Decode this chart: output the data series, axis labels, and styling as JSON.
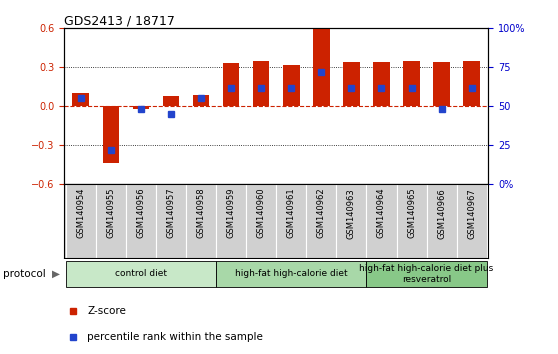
{
  "title": "GDS2413 / 18717",
  "samples": [
    "GSM140954",
    "GSM140955",
    "GSM140956",
    "GSM140957",
    "GSM140958",
    "GSM140959",
    "GSM140960",
    "GSM140961",
    "GSM140962",
    "GSM140963",
    "GSM140964",
    "GSM140965",
    "GSM140966",
    "GSM140967"
  ],
  "zscore": [
    0.1,
    -0.44,
    -0.02,
    0.08,
    0.09,
    0.33,
    0.35,
    0.32,
    0.6,
    0.34,
    0.34,
    0.35,
    0.34,
    0.35
  ],
  "percentile": [
    55,
    22,
    48,
    45,
    55,
    62,
    62,
    62,
    72,
    62,
    62,
    62,
    48,
    62
  ],
  "zscore_color": "#cc2200",
  "percentile_color": "#2244cc",
  "ylim_left": [
    -0.6,
    0.6
  ],
  "ylim_right": [
    0,
    100
  ],
  "yticks_left": [
    -0.6,
    -0.3,
    0.0,
    0.3,
    0.6
  ],
  "yticks_right": [
    0,
    25,
    50,
    75,
    100
  ],
  "groups": [
    {
      "label": "control diet",
      "start": 0,
      "end": 4,
      "color": "#c8e8c8"
    },
    {
      "label": "high-fat high-calorie diet",
      "start": 5,
      "end": 9,
      "color": "#a8d8a8"
    },
    {
      "label": "high-fat high-calorie diet plus\nresveratrol",
      "start": 10,
      "end": 13,
      "color": "#88c888"
    }
  ],
  "protocol_label": "protocol",
  "legend_zscore": "Z-score",
  "legend_percentile": "percentile rank within the sample",
  "bar_width": 0.55,
  "zero_line_color": "#cc2200",
  "bg_color": "#ffffff",
  "tick_label_area_color": "#d0d0d0",
  "right_axis_color": "#0000cc"
}
